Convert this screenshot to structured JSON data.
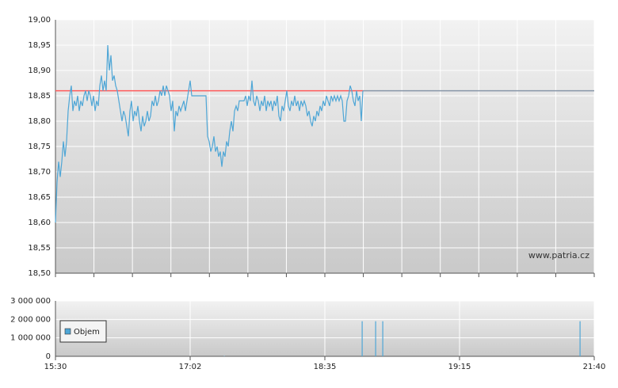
{
  "chart_data": [
    {
      "type": "line",
      "color": "#4ea6d6",
      "ylim": [
        18.5,
        19.0
      ],
      "yticks": [
        {
          "value": 18.5,
          "label": "18,50"
        },
        {
          "value": 18.55,
          "label": "18,55"
        },
        {
          "value": 18.6,
          "label": "18,60"
        },
        {
          "value": 18.65,
          "label": "18,65"
        },
        {
          "value": 18.7,
          "label": "18,70"
        },
        {
          "value": 18.75,
          "label": "18,75"
        },
        {
          "value": 18.8,
          "label": "18,80"
        },
        {
          "value": 18.85,
          "label": "18,85"
        },
        {
          "value": 18.9,
          "label": "18,90"
        },
        {
          "value": 18.95,
          "label": "18,95"
        },
        {
          "value": 19.0,
          "label": "19,00"
        }
      ],
      "xlim": [
        0,
        680
      ],
      "grid": true,
      "watermark": "www.patria.cz",
      "reference_value": 18.86,
      "reference_color": "#ff5a5a",
      "reference_color_after": "#8896a8",
      "x": [
        0,
        2,
        4,
        6,
        8,
        10,
        12,
        14,
        16,
        18,
        20,
        22,
        24,
        26,
        28,
        30,
        32,
        34,
        36,
        38,
        40,
        42,
        44,
        46,
        48,
        50,
        52,
        54,
        56,
        58,
        60,
        62,
        64,
        66,
        68,
        70,
        72,
        74,
        76,
        78,
        80,
        82,
        84,
        86,
        88,
        90,
        92,
        94,
        96,
        98,
        100,
        102,
        104,
        106,
        108,
        110,
        112,
        114,
        116,
        118,
        120,
        122,
        124,
        126,
        128,
        130,
        132,
        134,
        136,
        138,
        140,
        142,
        144,
        146,
        148,
        150,
        152,
        154,
        156,
        158,
        160,
        162,
        164,
        166,
        168,
        170,
        172,
        174,
        176,
        178,
        180,
        182,
        184,
        186,
        188,
        190,
        192,
        194,
        196,
        198,
        200,
        202,
        204,
        206,
        208,
        210,
        212,
        214,
        216,
        218,
        220,
        222,
        224,
        226,
        228,
        230,
        232,
        234,
        236,
        238,
        240,
        242,
        244,
        246,
        248,
        250,
        252,
        254,
        256,
        258,
        260,
        262,
        264,
        266,
        268,
        270,
        272,
        274,
        276,
        278,
        280,
        282,
        284,
        286,
        288,
        290,
        292,
        294,
        296,
        298,
        300,
        302,
        304,
        306,
        308,
        310,
        312,
        314,
        316,
        318,
        320,
        322,
        324,
        326,
        328,
        330,
        332,
        334,
        336,
        338,
        340,
        342,
        344,
        346,
        348,
        350,
        352,
        354,
        356,
        358,
        360,
        362,
        364,
        366,
        368,
        370,
        372,
        374,
        376,
        378,
        380,
        382,
        384,
        386,
        388
      ],
      "values": [
        18.6,
        18.68,
        18.72,
        18.69,
        18.72,
        18.76,
        18.73,
        18.76,
        18.82,
        18.85,
        18.87,
        18.82,
        18.84,
        18.83,
        18.85,
        18.82,
        18.84,
        18.83,
        18.85,
        18.86,
        18.84,
        18.86,
        18.85,
        18.83,
        18.85,
        18.82,
        18.84,
        18.83,
        18.87,
        18.89,
        18.86,
        18.88,
        18.86,
        18.95,
        18.9,
        18.93,
        18.88,
        18.89,
        18.87,
        18.86,
        18.84,
        18.82,
        18.8,
        18.82,
        18.81,
        18.79,
        18.77,
        18.82,
        18.84,
        18.8,
        18.82,
        18.81,
        18.83,
        18.8,
        18.78,
        18.81,
        18.79,
        18.8,
        18.82,
        18.8,
        18.81,
        18.84,
        18.83,
        18.85,
        18.83,
        18.84,
        18.86,
        18.85,
        18.87,
        18.85,
        18.87,
        18.86,
        18.85,
        18.82,
        18.84,
        18.78,
        18.82,
        18.81,
        18.83,
        18.82,
        18.83,
        18.84,
        18.82,
        18.84,
        18.86,
        18.88,
        18.85,
        18.85,
        18.85,
        18.85,
        18.85,
        18.85,
        18.85,
        18.85,
        18.85,
        18.85,
        18.77,
        18.76,
        18.74,
        18.75,
        18.77,
        18.74,
        18.75,
        18.73,
        18.74,
        18.71,
        18.74,
        18.73,
        18.76,
        18.75,
        18.78,
        18.8,
        18.78,
        18.82,
        18.83,
        18.82,
        18.84,
        18.84,
        18.84,
        18.84,
        18.85,
        18.83,
        18.85,
        18.84,
        18.88,
        18.84,
        18.83,
        18.85,
        18.84,
        18.82,
        18.84,
        18.83,
        18.85,
        18.82,
        18.84,
        18.83,
        18.84,
        18.82,
        18.84,
        18.83,
        18.85,
        18.81,
        18.8,
        18.83,
        18.82,
        18.84,
        18.86,
        18.83,
        18.82,
        18.84,
        18.83,
        18.85,
        18.83,
        18.84,
        18.82,
        18.84,
        18.83,
        18.84,
        18.83,
        18.81,
        18.82,
        18.8,
        18.79,
        18.81,
        18.8,
        18.82,
        18.81,
        18.83,
        18.82,
        18.84,
        18.83,
        18.85,
        18.84,
        18.83,
        18.85,
        18.84,
        18.85,
        18.84,
        18.85,
        18.84,
        18.85,
        18.84,
        18.8,
        18.8,
        18.84,
        18.85,
        18.87,
        18.86,
        18.84,
        18.83,
        18.86,
        18.84,
        18.85,
        18.8,
        18.86
      ]
    },
    {
      "type": "bar",
      "color": "#4ea6d6",
      "ylim": [
        0,
        3000000
      ],
      "yticks": [
        0,
        {
          "value": 1000000,
          "label": "1 000 000"
        },
        {
          "value": 2000000,
          "label": "2 000 000"
        },
        {
          "value": 3000000,
          "label": "3 000 000"
        }
      ],
      "xlim": [
        0,
        680
      ],
      "xticks": [
        {
          "value": 0,
          "label": "15:30"
        },
        {
          "value": 170,
          "label": "17:02"
        },
        {
          "value": 340,
          "label": "18:35"
        },
        {
          "value": 510,
          "label": "19:15"
        },
        {
          "value": 680,
          "label": "21:40"
        }
      ],
      "grid": true,
      "series": [
        {
          "name": "Objem",
          "color": "#4ea6d6",
          "x": [
            213,
            387,
            404,
            413,
            662
          ],
          "values": [
            20000,
            1900000,
            1900000,
            1900000,
            1900000
          ]
        }
      ]
    }
  ]
}
